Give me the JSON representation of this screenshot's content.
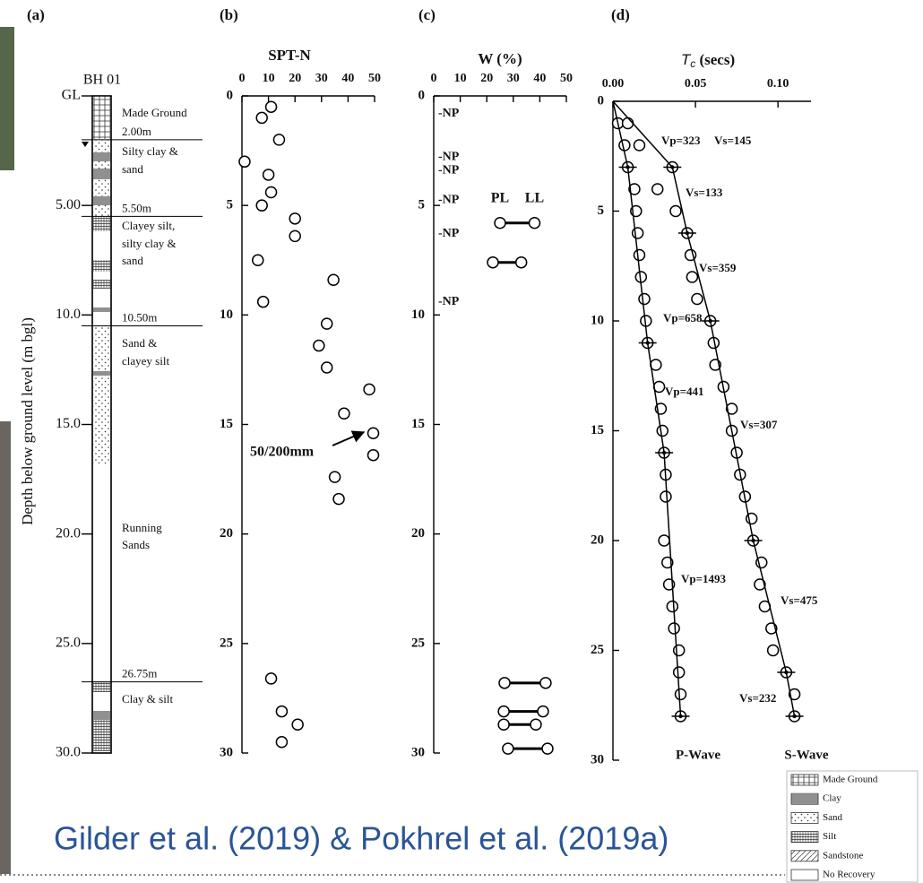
{
  "chart_data": [
    {
      "type": "borehole-log",
      "panel_label": "(a)",
      "title": "BH 01",
      "y_label": "Depth below ground level (m bgl)",
      "ylim": [
        0,
        30
      ],
      "yticks": [
        {
          "value": 0,
          "label": "GL"
        },
        {
          "value": 5,
          "label": "5.00"
        },
        {
          "value": 10,
          "label": "10.0"
        },
        {
          "value": 15,
          "label": "15.0"
        },
        {
          "value": 20,
          "label": "20.0"
        },
        {
          "value": 25,
          "label": "25.0"
        },
        {
          "value": 30,
          "label": "30.0"
        }
      ],
      "boundaries": [
        {
          "value": 2,
          "label": "2.00m"
        },
        {
          "value": 5.5,
          "label": "5.50m"
        },
        {
          "value": 10.5,
          "label": "10.50m"
        },
        {
          "value": 26.75,
          "label": "26.75m"
        }
      ],
      "descriptions": [
        [
          "Made Ground"
        ],
        [
          "Silty clay &",
          "sand"
        ],
        [
          "Clayey silt,",
          "silty clay &",
          "sand"
        ],
        [
          "Sand &",
          "clayey silt"
        ],
        [
          "Running",
          "Sands"
        ],
        [
          "Clay & silt"
        ]
      ],
      "pattern_legend": [
        "Made Ground",
        "Clay",
        "Sand",
        "Silt",
        "Sandstone",
        "No Recovery"
      ]
    },
    {
      "type": "scatter",
      "panel_label": "(b)",
      "title": "SPT-N",
      "xlim": [
        0,
        50
      ],
      "xticks": [
        0,
        10,
        20,
        30,
        40,
        50
      ],
      "ylim": [
        0,
        30
      ],
      "yticks": [
        0,
        5,
        10,
        15,
        20,
        25,
        30
      ],
      "x": [
        11,
        7.5,
        14,
        1,
        10,
        11,
        7.5,
        20,
        20,
        6,
        34.5,
        8,
        32,
        29,
        32,
        48,
        38.5,
        49.5,
        49.5,
        35,
        36.5,
        11,
        15,
        21,
        15
      ],
      "y": [
        0.5,
        1,
        2,
        3,
        3.6,
        4.4,
        5,
        5.6,
        6.4,
        7.5,
        8.4,
        9.4,
        10.4,
        11.4,
        12.4,
        13.4,
        14.5,
        15.4,
        16.4,
        17.4,
        18.4,
        26.6,
        28.1,
        28.7,
        29.5
      ],
      "annotation": "50/200mm"
    },
    {
      "type": "range",
      "panel_label": "(c)",
      "title": "W (%)",
      "xlim": [
        0,
        50
      ],
      "xticks": [
        0,
        10,
        20,
        30,
        40,
        50
      ],
      "ylim": [
        0,
        30
      ],
      "yticks": [
        0,
        5,
        10,
        15,
        20,
        25,
        30
      ],
      "y": [
        5.8,
        7.6,
        26.8,
        28.1,
        28.7,
        29.8
      ],
      "series": [
        {
          "name": "PL",
          "values": [
            25,
            22.3,
            26.7,
            26.4,
            26.4,
            28
          ]
        },
        {
          "name": "LL",
          "values": [
            38,
            33,
            42.2,
            41.2,
            38.5,
            42.9
          ]
        }
      ],
      "np_label": "-NP",
      "np_depths": [
        0.8,
        2.8,
        3.4,
        4.75,
        6.3,
        9.4
      ]
    },
    {
      "type": "scatter-fit",
      "panel_label": "(d)",
      "x_label_symbol": "T",
      "x_label_subscript": "c",
      "x_label_unit": "(secs)",
      "xlim": [
        0,
        0.12
      ],
      "xticks": [
        {
          "value": 0,
          "label": "0.00"
        },
        {
          "value": 0.05,
          "label": "0.05"
        },
        {
          "value": 0.1,
          "label": "0.10"
        }
      ],
      "ylim": [
        0,
        30
      ],
      "yticks": [
        0,
        5,
        10,
        15,
        20,
        25,
        30
      ],
      "series": [
        {
          "name": "P-Wave",
          "y": [
            1,
            2,
            3,
            4,
            5,
            6,
            7,
            8,
            9,
            10,
            11,
            12,
            13,
            14,
            15,
            16,
            17,
            18,
            20,
            21,
            22,
            23,
            24,
            25,
            26,
            27,
            28
          ],
          "values": [
            0.003,
            0.007,
            0.009,
            0.013,
            0.014,
            0.015,
            0.016,
            0.017,
            0.019,
            0.02,
            0.021,
            0.026,
            0.028,
            0.029,
            0.03,
            0.031,
            0.032,
            0.032,
            0.031,
            0.033,
            0.034,
            0.036,
            0.037,
            0.04,
            0.04,
            0.041,
            0.041
          ],
          "fit": {
            "y": [
              0,
              3,
              11,
              16,
              28
            ],
            "values": [
              0,
              0.009,
              0.021,
              0.031,
              0.041
            ]
          }
        },
        {
          "name": "S-Wave",
          "y": [
            1,
            2,
            3,
            4,
            5,
            6,
            7,
            8,
            9,
            10,
            11,
            12,
            13,
            14,
            15,
            16,
            17,
            18,
            19,
            20,
            21,
            22,
            23,
            24,
            25,
            26,
            27,
            28
          ],
          "values": [
            0.009,
            0.016,
            0.036,
            0.027,
            0.038,
            0.045,
            0.047,
            0.048,
            0.051,
            0.059,
            0.061,
            0.062,
            0.067,
            0.072,
            0.072,
            0.075,
            0.077,
            0.08,
            0.084,
            0.085,
            0.09,
            0.089,
            0.092,
            0.096,
            0.097,
            0.105,
            0.11,
            0.11
          ],
          "fit": {
            "y": [
              0,
              3,
              6,
              10,
              20,
              26,
              28
            ],
            "values": [
              0,
              0.036,
              0.045,
              0.059,
              0.085,
              0.105,
              0.11
            ]
          }
        }
      ],
      "annotations": [
        "Vp=323",
        "Vs=145",
        "Vs=133",
        "Vs=359",
        "Vp=658",
        "Vp=441",
        "Vs=307",
        "Vp=1493",
        "Vs=475",
        "Vs=232"
      ]
    }
  ],
  "caption": "Gilder et al. (2019) & Pokhrel et al. (2019a)"
}
